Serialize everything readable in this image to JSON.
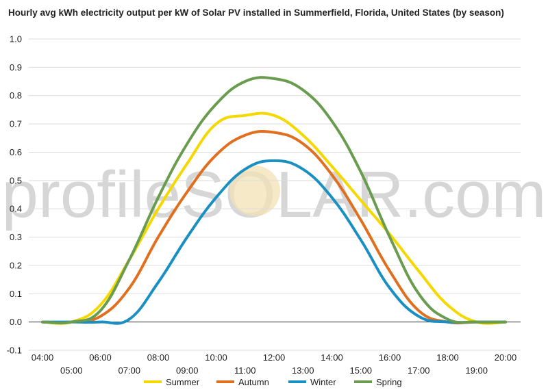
{
  "chart_data": {
    "type": "line",
    "title": "Hourly avg kWh electricity output per kW of Solar PV installed in Summerfield, Florida, United States (by season)",
    "watermark": "profileSOLAR.com",
    "xlabel": "",
    "ylabel": "",
    "ylim": [
      -0.1,
      1.0
    ],
    "y_ticks": [
      "-0.1",
      "0.0",
      "0.1",
      "0.2",
      "0.3",
      "0.4",
      "0.5",
      "0.6",
      "0.7",
      "0.8",
      "0.9",
      "1.0"
    ],
    "categories": [
      "04:00",
      "05:00",
      "06:00",
      "07:00",
      "08:00",
      "09:00",
      "10:00",
      "11:00",
      "12:00",
      "13:00",
      "14:00",
      "15:00",
      "16:00",
      "17:00",
      "18:00",
      "19:00",
      "20:00"
    ],
    "grid": true,
    "legend_position": "bottom",
    "series": [
      {
        "name": "Summer",
        "color": "#f5d800",
        "values": [
          0.0,
          0.0,
          0.06,
          0.22,
          0.4,
          0.56,
          0.7,
          0.73,
          0.73,
          0.66,
          0.55,
          0.43,
          0.31,
          0.18,
          0.06,
          0.0,
          0.0
        ]
      },
      {
        "name": "Autumn",
        "color": "#e07020",
        "values": [
          0.0,
          0.0,
          0.02,
          0.12,
          0.3,
          0.46,
          0.59,
          0.66,
          0.67,
          0.63,
          0.52,
          0.36,
          0.18,
          0.04,
          0.0,
          0.0,
          0.0
        ]
      },
      {
        "name": "Winter",
        "color": "#1a8fc2",
        "values": [
          0.0,
          0.0,
          0.0,
          0.01,
          0.14,
          0.3,
          0.44,
          0.54,
          0.57,
          0.54,
          0.44,
          0.29,
          0.12,
          0.02,
          0.0,
          0.0,
          0.0
        ]
      },
      {
        "name": "Spring",
        "color": "#6a9c50",
        "values": [
          0.0,
          0.0,
          0.04,
          0.22,
          0.44,
          0.63,
          0.77,
          0.85,
          0.86,
          0.82,
          0.71,
          0.53,
          0.3,
          0.1,
          0.01,
          0.0,
          0.0
        ]
      }
    ]
  }
}
